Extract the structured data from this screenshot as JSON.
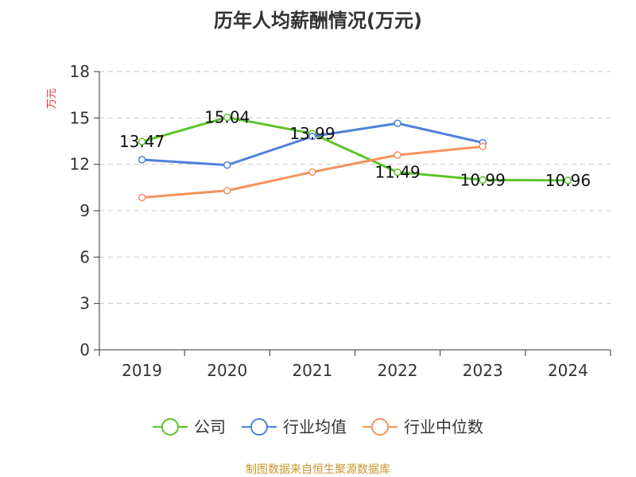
{
  "chart_data": {
    "type": "line",
    "title": "历年人均薪酬情况(万元)",
    "ylabel": "万元",
    "xlabel": "",
    "categories": [
      "2019",
      "2020",
      "2021",
      "2022",
      "2023",
      "2024"
    ],
    "ylim": [
      0,
      18
    ],
    "yticks": [
      0,
      3,
      6,
      9,
      12,
      15,
      18
    ],
    "grid": true,
    "legend_position": "bottom",
    "series": [
      {
        "name": "公司",
        "color": "#5cc42b",
        "values": [
          13.47,
          15.04,
          13.99,
          11.49,
          10.99,
          10.96
        ],
        "data_labels": [
          "13.47",
          "15.04",
          "13.99",
          "11.49",
          "10.99",
          "10.96"
        ]
      },
      {
        "name": "行业均值",
        "color": "#4f81d9",
        "values": [
          12.3,
          11.95,
          13.8,
          14.65,
          13.4,
          null
        ],
        "data_labels": null
      },
      {
        "name": "行业中位数",
        "color": "#f5925e",
        "values": [
          9.85,
          10.3,
          11.5,
          12.6,
          13.15,
          null
        ],
        "data_labels": null
      }
    ],
    "source": "制图数据来自恒生聚源数据库",
    "source_color": "#c8962e",
    "unit_color": "#e03030"
  }
}
